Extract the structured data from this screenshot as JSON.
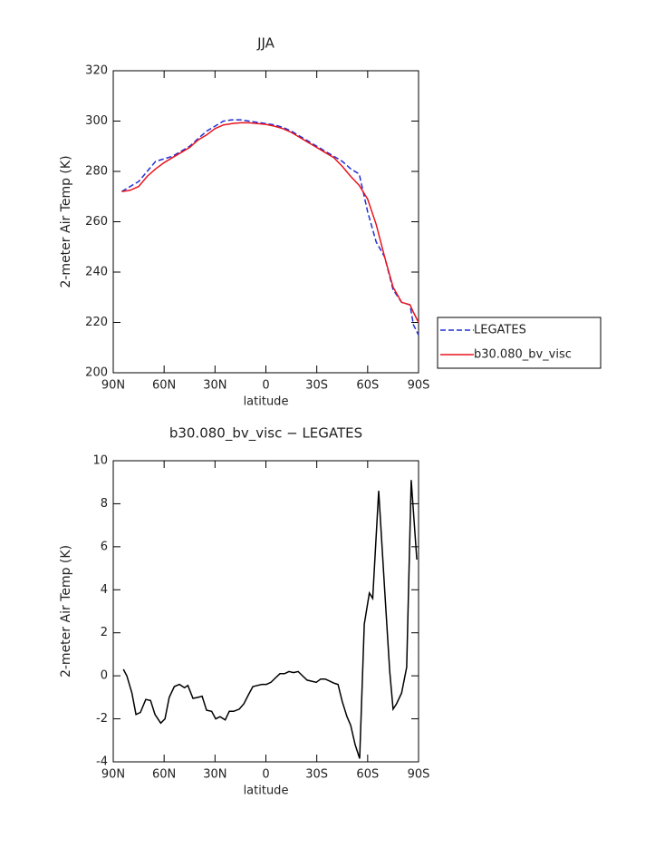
{
  "chart_data": [
    {
      "type": "line",
      "title": "JJA",
      "x_label": "latitude",
      "y_label": "2-meter Air Temp (K)",
      "x": [
        85,
        80,
        75,
        70,
        65,
        60,
        55,
        50,
        45,
        40,
        35,
        30,
        25,
        20,
        15,
        10,
        5,
        0,
        -5,
        -10,
        -15,
        -20,
        -25,
        -30,
        -35,
        -40,
        -45,
        -50,
        -55,
        -60,
        -65,
        -70,
        -75,
        -80,
        -85,
        -87,
        -90
      ],
      "series": [
        {
          "name": "LEGATES",
          "color": "#1f2fd6",
          "linestyle": "dashed",
          "values": [
            272,
            274,
            276,
            280,
            284,
            285,
            286,
            288,
            290,
            293,
            296,
            298,
            300,
            300.5,
            300.5,
            300,
            299.5,
            299,
            298.5,
            297.5,
            296,
            294,
            292,
            290,
            288,
            286,
            284,
            281,
            279,
            264,
            252,
            246,
            233,
            228,
            227,
            219,
            215
          ]
        },
        {
          "name": "b30.080_bv_visc",
          "color": "#e8141e",
          "linestyle": "solid",
          "values": [
            272,
            272.5,
            274,
            278,
            281,
            283.5,
            285.5,
            287.5,
            289.5,
            292.5,
            294.5,
            297,
            298.5,
            299,
            299.3,
            299.3,
            299,
            298.7,
            298,
            297,
            295.5,
            293.5,
            291.5,
            289.5,
            287.5,
            285.5,
            282,
            278,
            274.5,
            269,
            259,
            246,
            234,
            228,
            227,
            224,
            220
          ]
        }
      ],
      "xlim": [
        90,
        -90
      ],
      "xticks": [
        {
          "value": 90,
          "label": "90N"
        },
        {
          "value": 60,
          "label": "60N"
        },
        {
          "value": 30,
          "label": "30N"
        },
        0,
        {
          "value": -30,
          "label": "30S"
        },
        {
          "value": -60,
          "label": "60S"
        },
        {
          "value": -90,
          "label": "90S"
        }
      ],
      "ylim": [
        200,
        320
      ],
      "yticks": [
        200,
        220,
        240,
        260,
        280,
        300,
        320
      ],
      "legend": "right"
    },
    {
      "type": "line",
      "title": "b30.080_bv_visc − LEGATES",
      "x_label": "latitude",
      "y_label": "2-meter Air Temp (K)",
      "x": [
        84,
        82,
        79,
        76.6,
        74,
        70.8,
        68,
        65.4,
        62,
        59.5,
        57,
        54,
        51,
        48,
        46,
        43,
        40,
        37.6,
        35,
        32,
        29.6,
        27,
        24,
        21.6,
        19,
        15.7,
        13,
        10.4,
        7.7,
        5,
        2.4,
        -0.3,
        -3,
        -5.6,
        -8.3,
        -11,
        -13.6,
        -16.3,
        -19,
        -21.6,
        -24.3,
        -27,
        -29.7,
        -32.3,
        -35,
        -37.7,
        -40.3,
        -42.5,
        -45,
        -47.8,
        -50,
        -52.6,
        -55.3,
        -58,
        -61,
        -63,
        -66.5,
        -70,
        -73,
        -75,
        -77,
        -80,
        -83,
        -85.7,
        -89
      ],
      "series": [
        {
          "name": "b30.080_bv_visc − LEGATES",
          "color": "#000000",
          "linestyle": "solid",
          "values": [
            0.3,
            0,
            -0.8,
            -1.8,
            -1.7,
            -1.1,
            -1.15,
            -1.8,
            -2.2,
            -2.0,
            -1.0,
            -0.5,
            -0.4,
            -0.55,
            -0.45,
            -1.05,
            -1.0,
            -0.95,
            -1.6,
            -1.65,
            -2.0,
            -1.9,
            -2.05,
            -1.65,
            -1.65,
            -1.55,
            -1.3,
            -0.9,
            -0.5,
            -0.45,
            -0.4,
            -0.4,
            -0.3,
            -0.1,
            0.1,
            0.1,
            0.2,
            0.15,
            0.2,
            0,
            -0.2,
            -0.25,
            -0.3,
            -0.15,
            -0.15,
            -0.25,
            -0.35,
            -0.4,
            -1.2,
            -1.9,
            -2.3,
            -3.2,
            -3.85,
            2.4,
            3.85,
            3.6,
            8.6,
            4.0,
            0.2,
            -1.55,
            -1.3,
            -0.8,
            0.4,
            9.1,
            5.4
          ]
        }
      ],
      "xlim": [
        90,
        -90
      ],
      "xticks": [
        {
          "value": 90,
          "label": "90N"
        },
        {
          "value": 60,
          "label": "60N"
        },
        {
          "value": 30,
          "label": "30N"
        },
        0,
        {
          "value": -30,
          "label": "30S"
        },
        {
          "value": -60,
          "label": "60S"
        },
        {
          "value": -90,
          "label": "90S"
        }
      ],
      "ylim": [
        -4,
        10
      ],
      "yticks": [
        -4,
        -2,
        0,
        2,
        4,
        6,
        8,
        10
      ]
    }
  ]
}
